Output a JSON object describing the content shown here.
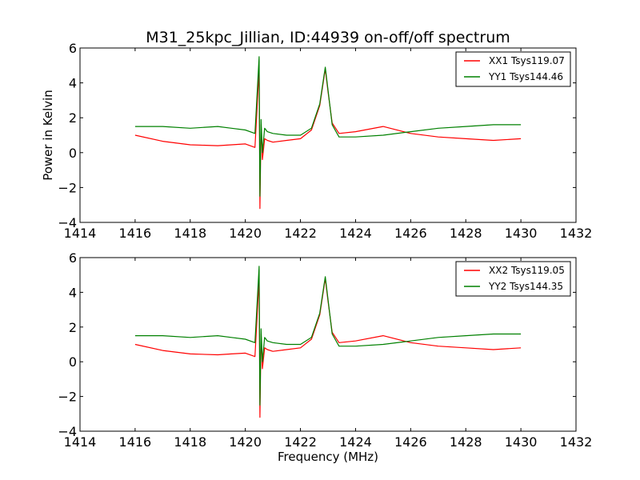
{
  "colors": {
    "xx": "#ff0000",
    "yy": "#008000"
  },
  "chart_data": [
    {
      "type": "line",
      "title": "M31_25kpc_Jillian, ID:44939 on-off/off spectrum",
      "xlabel": "",
      "ylabel": "Power in Kelvin",
      "xlim": [
        1414,
        1432
      ],
      "ylim": [
        -4,
        6
      ],
      "xticks": [
        "1414",
        "1416",
        "1418",
        "1420",
        "1422",
        "1424",
        "1426",
        "1428",
        "1430",
        "1432"
      ],
      "yticks": [
        "6",
        "4",
        "2",
        "0",
        "−2",
        "−4"
      ],
      "legend_position": "top-right",
      "series": [
        {
          "name": "XX1 Tsys119.07",
          "color": "#ff0000",
          "x": [
            1416.0,
            1417.0,
            1418.0,
            1419.0,
            1419.5,
            1420.0,
            1420.35,
            1420.5,
            1420.53,
            1420.57,
            1420.62,
            1420.7,
            1420.8,
            1421.0,
            1421.5,
            1422.0,
            1422.4,
            1422.7,
            1422.9,
            1423.0,
            1423.15,
            1423.4,
            1424.0,
            1425.0,
            1426.0,
            1427.0,
            1428.0,
            1429.0,
            1430.0
          ],
          "y": [
            1.0,
            0.65,
            0.45,
            0.4,
            0.45,
            0.5,
            0.3,
            4.8,
            -3.2,
            1.6,
            -0.4,
            0.8,
            0.7,
            0.6,
            0.7,
            0.8,
            1.3,
            2.7,
            4.8,
            3.5,
            1.7,
            1.1,
            1.2,
            1.5,
            1.1,
            0.9,
            0.8,
            0.7,
            0.8
          ]
        },
        {
          "name": "YY1 Tsys144.46",
          "color": "#008000",
          "x": [
            1416.0,
            1417.0,
            1418.0,
            1419.0,
            1419.5,
            1420.0,
            1420.35,
            1420.5,
            1420.53,
            1420.57,
            1420.62,
            1420.7,
            1420.8,
            1421.0,
            1421.5,
            1422.0,
            1422.4,
            1422.7,
            1422.9,
            1423.0,
            1423.15,
            1423.4,
            1424.0,
            1425.0,
            1426.0,
            1427.0,
            1428.0,
            1429.0,
            1430.0
          ],
          "y": [
            1.5,
            1.5,
            1.4,
            1.5,
            1.4,
            1.3,
            1.1,
            5.5,
            -2.5,
            1.9,
            0.0,
            1.4,
            1.2,
            1.1,
            1.0,
            1.0,
            1.4,
            2.8,
            4.9,
            3.6,
            1.6,
            0.9,
            0.9,
            1.0,
            1.2,
            1.4,
            1.5,
            1.6,
            1.6
          ]
        }
      ]
    },
    {
      "type": "line",
      "title": "",
      "xlabel": "Frequency (MHz)",
      "ylabel": "",
      "xlim": [
        1414,
        1432
      ],
      "ylim": [
        -4,
        6
      ],
      "xticks": [
        "1414",
        "1416",
        "1418",
        "1420",
        "1422",
        "1424",
        "1426",
        "1428",
        "1430",
        "1432"
      ],
      "yticks": [
        "6",
        "4",
        "2",
        "0",
        "−2",
        "−4"
      ],
      "legend_position": "top-right",
      "series": [
        {
          "name": "XX2 Tsys119.05",
          "color": "#ff0000",
          "x": [
            1416.0,
            1417.0,
            1418.0,
            1419.0,
            1419.5,
            1420.0,
            1420.35,
            1420.5,
            1420.53,
            1420.57,
            1420.62,
            1420.7,
            1420.8,
            1421.0,
            1421.5,
            1422.0,
            1422.4,
            1422.7,
            1422.9,
            1423.0,
            1423.15,
            1423.4,
            1424.0,
            1425.0,
            1426.0,
            1427.0,
            1428.0,
            1429.0,
            1430.0
          ],
          "y": [
            1.0,
            0.65,
            0.45,
            0.4,
            0.45,
            0.5,
            0.3,
            4.8,
            -3.2,
            1.6,
            -0.4,
            0.8,
            0.7,
            0.6,
            0.7,
            0.8,
            1.3,
            2.7,
            4.8,
            3.5,
            1.7,
            1.1,
            1.2,
            1.5,
            1.1,
            0.9,
            0.8,
            0.7,
            0.8
          ]
        },
        {
          "name": "YY2 Tsys144.35",
          "color": "#008000",
          "x": [
            1416.0,
            1417.0,
            1418.0,
            1419.0,
            1419.5,
            1420.0,
            1420.35,
            1420.5,
            1420.53,
            1420.57,
            1420.62,
            1420.7,
            1420.8,
            1421.0,
            1421.5,
            1422.0,
            1422.4,
            1422.7,
            1422.9,
            1423.0,
            1423.15,
            1423.4,
            1424.0,
            1425.0,
            1426.0,
            1427.0,
            1428.0,
            1429.0,
            1430.0
          ],
          "y": [
            1.5,
            1.5,
            1.4,
            1.5,
            1.4,
            1.3,
            1.1,
            5.5,
            -2.5,
            1.9,
            0.0,
            1.4,
            1.2,
            1.1,
            1.0,
            1.0,
            1.4,
            2.8,
            4.9,
            3.6,
            1.6,
            0.9,
            0.9,
            1.0,
            1.2,
            1.4,
            1.5,
            1.6,
            1.6
          ]
        }
      ]
    }
  ]
}
